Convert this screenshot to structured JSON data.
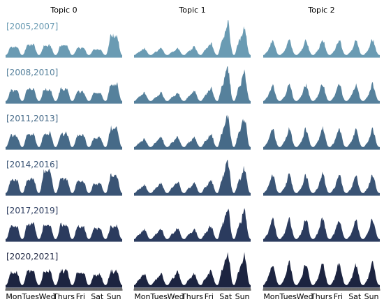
{
  "chart_data": {
    "type": "area",
    "title": "",
    "xlabel": "",
    "ylabel": "",
    "topics": [
      "Topic 0",
      "Topic 1",
      "Topic 2"
    ],
    "periods": [
      {
        "label": "[2005,2007]",
        "color": "#6a9bb3"
      },
      {
        "label": "[2008,2010]",
        "color": "#56819c"
      },
      {
        "label": "[2011,2013]",
        "color": "#466a88"
      },
      {
        "label": "[2014,2016]",
        "color": "#3a5475"
      },
      {
        "label": "[2017,2019]",
        "color": "#2b3b5e"
      },
      {
        "label": "[2020,2021]",
        "color": "#1c2440"
      }
    ],
    "day_labels": [
      "Mon",
      "Tues",
      "Wed",
      "Thurs",
      "Fri",
      "Sat",
      "Sun"
    ],
    "hours_per_day": 24,
    "ylim": [
      0,
      1
    ],
    "series": [
      {
        "name": "Topic 0",
        "daily_peaks": [
          [
            0.35,
            0.45,
            0.4,
            0.42,
            0.3,
            0.25,
            0.85
          ],
          [
            0.45,
            0.55,
            0.5,
            0.52,
            0.4,
            0.35,
            0.75
          ],
          [
            0.5,
            0.55,
            0.6,
            0.58,
            0.5,
            0.4,
            0.8
          ],
          [
            0.55,
            0.6,
            0.95,
            0.6,
            0.5,
            0.4,
            0.75
          ],
          [
            0.55,
            0.65,
            0.6,
            0.62,
            0.55,
            0.45,
            0.55
          ],
          [
            0.55,
            0.6,
            0.6,
            0.62,
            0.55,
            0.45,
            0.6
          ]
        ]
      },
      {
        "name": "Topic 1",
        "daily_peaks": [
          [
            0.2,
            0.2,
            0.2,
            0.25,
            0.35,
            1.0,
            0.85
          ],
          [
            0.25,
            0.25,
            0.25,
            0.3,
            0.4,
            1.0,
            0.85
          ],
          [
            0.25,
            0.3,
            0.3,
            0.3,
            0.4,
            0.95,
            0.9
          ],
          [
            0.25,
            0.3,
            0.35,
            0.3,
            0.4,
            0.95,
            0.8
          ],
          [
            0.3,
            0.3,
            0.35,
            0.3,
            0.4,
            0.95,
            0.85
          ],
          [
            0.35,
            0.35,
            0.4,
            0.35,
            0.45,
            1.0,
            0.9
          ]
        ]
      },
      {
        "name": "Topic 2",
        "daily_peaks": [
          [
            0.35,
            0.35,
            0.35,
            0.38,
            0.38,
            0.35,
            0.38
          ],
          [
            0.4,
            0.4,
            0.4,
            0.42,
            0.42,
            0.4,
            0.42
          ],
          [
            0.45,
            0.45,
            0.45,
            0.48,
            0.45,
            0.42,
            0.45
          ],
          [
            0.45,
            0.45,
            0.45,
            0.48,
            0.45,
            0.42,
            0.45
          ],
          [
            0.5,
            0.5,
            0.5,
            0.52,
            0.5,
            0.45,
            0.5
          ],
          [
            0.55,
            0.55,
            0.55,
            0.55,
            0.55,
            0.5,
            0.55
          ]
        ]
      }
    ],
    "grid": false,
    "legend": "none"
  }
}
